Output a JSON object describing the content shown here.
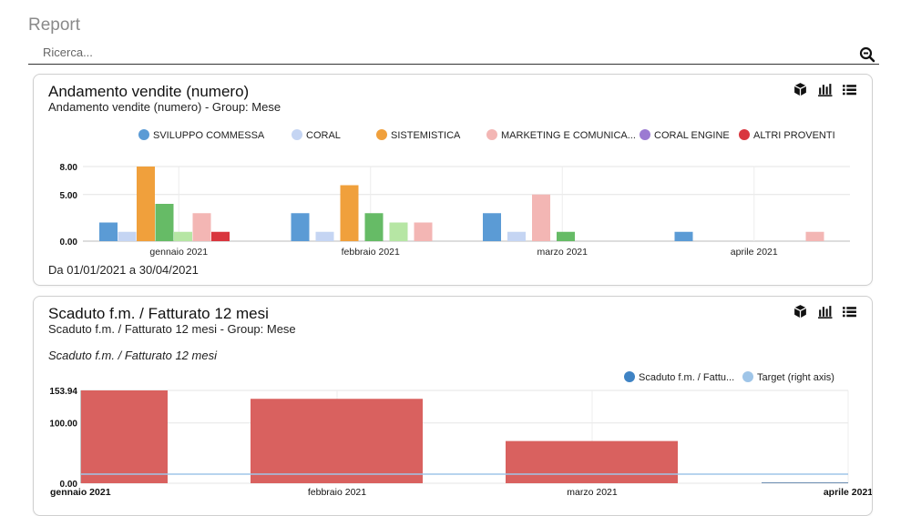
{
  "page": {
    "title": "Report"
  },
  "search": {
    "placeholder": "Ricerca..."
  },
  "toolbar_icons": [
    "cube-icon",
    "bar-chart-icon",
    "list-icon"
  ],
  "card1": {
    "title": "Andamento vendite (numero)",
    "subtitle": "Andamento vendite (numero) - Group: Mese",
    "footer": "Da 01/01/2021 a 30/04/2021"
  },
  "card2": {
    "title": "Scaduto f.m. / Fatturato 12 mesi",
    "subtitle": "Scaduto f.m. / Fatturato 12 mesi - Group: Mese",
    "chart_title": "Scaduto f.m. / Fatturato 12 mesi"
  },
  "chart_data": [
    {
      "type": "bar",
      "categories": [
        "gennaio 2021",
        "febbraio 2021",
        "marzo 2021",
        "aprile 2021"
      ],
      "series": [
        {
          "name": "SVILUPPO COMMESSA",
          "color": "#5b9bd5",
          "values": [
            2,
            3,
            3,
            1
          ]
        },
        {
          "name": "CORAL",
          "color": "#c5d5f3",
          "values": [
            1,
            1,
            1,
            0
          ]
        },
        {
          "name": "SISTEMISTICA",
          "color": "#f0a03c",
          "values": [
            8,
            6,
            0,
            0
          ]
        },
        {
          "name": "MARKETING E COMUNICA...",
          "color": "#f3b6b4",
          "values": [
            3,
            2,
            5,
            1
          ]
        },
        {
          "name": "CORAL ENGINE",
          "color": "#9b7ad2",
          "values": [
            0,
            0,
            0,
            0
          ]
        },
        {
          "name": "ALTRI PROVENTI",
          "color": "#d9363e",
          "values": [
            1,
            0,
            0,
            0
          ]
        }
      ],
      "extra_bars": [
        {
          "category": "gennaio 2021",
          "color": "#66bb66",
          "value": 4
        },
        {
          "category": "gennaio 2021",
          "color": "#b6e6a4",
          "value": 1
        },
        {
          "category": "febbraio 2021",
          "color": "#66bb66",
          "value": 3
        },
        {
          "category": "febbraio 2021",
          "color": "#b6e6a4",
          "value": 2
        },
        {
          "category": "marzo 2021",
          "color": "#66bb66",
          "value": 1
        }
      ],
      "y_ticks": [
        "0.00",
        "5.00",
        "8.00"
      ],
      "ylim": [
        0,
        8
      ],
      "legend_position": "top",
      "grid": true
    },
    {
      "type": "bar",
      "title": "Scaduto f.m. / Fatturato 12 mesi",
      "categories": [
        "gennaio 2021",
        "febbraio 2021",
        "marzo 2021",
        "aprile 2021"
      ],
      "series": [
        {
          "name": "Scaduto f.m. / Fattu...",
          "color": "#d9615f",
          "values": [
            153.94,
            140,
            70,
            1
          ]
        },
        {
          "name": "Target (right axis)",
          "color": "#9fc5e8",
          "type": "line",
          "values": [
            15,
            15,
            15,
            15
          ]
        }
      ],
      "y_ticks": [
        "0.00",
        "100.00",
        "153.94"
      ],
      "ylim": [
        0,
        153.94
      ],
      "legend_position": "top-right",
      "grid": true
    }
  ]
}
